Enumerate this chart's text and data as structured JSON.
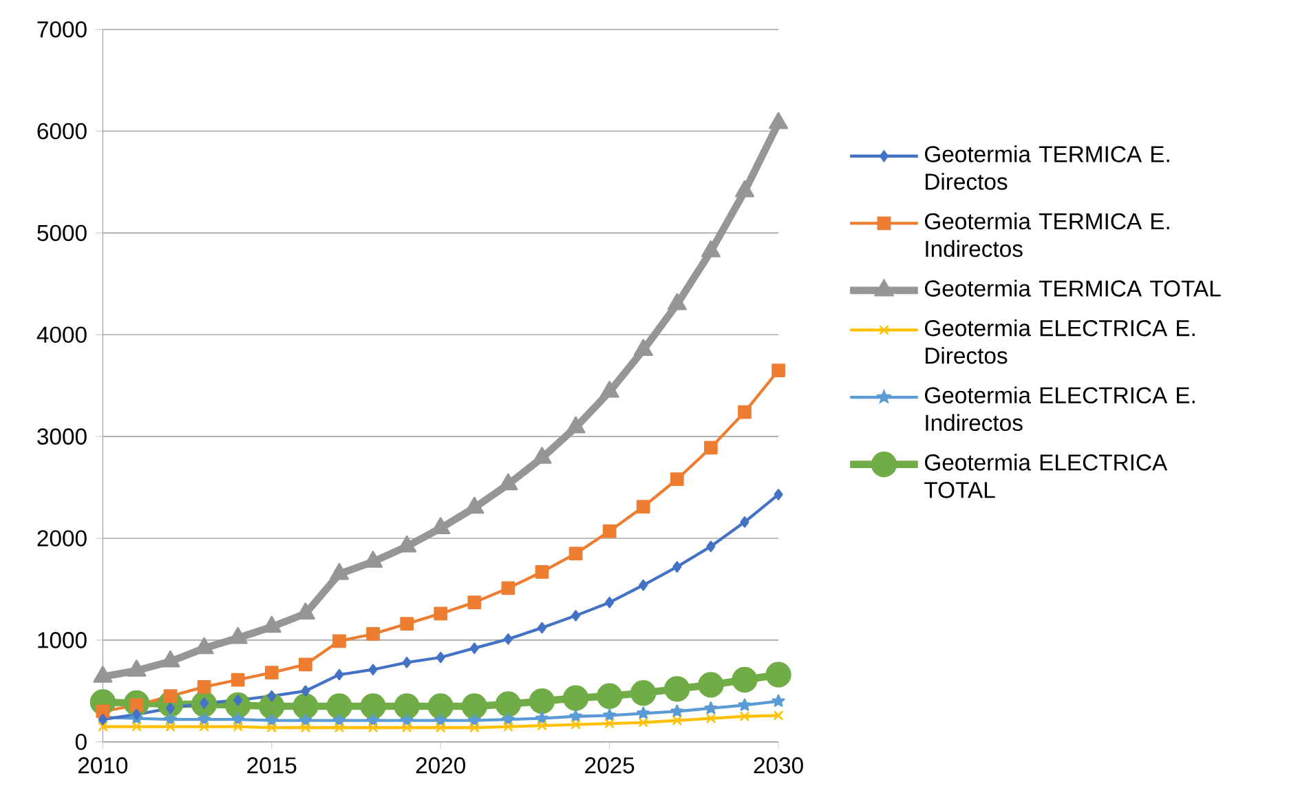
{
  "chart_data": {
    "type": "line",
    "x": [
      2010,
      2011,
      2012,
      2013,
      2014,
      2015,
      2016,
      2017,
      2018,
      2019,
      2020,
      2021,
      2022,
      2023,
      2024,
      2025,
      2026,
      2027,
      2028,
      2029,
      2030
    ],
    "series": [
      {
        "name": "Geotermia TERMICA E. Directos",
        "color": "#4472c4",
        "marker": "diamond",
        "values": [
          220,
          270,
          330,
          380,
          410,
          450,
          500,
          660,
          710,
          780,
          830,
          920,
          1010,
          1120,
          1240,
          1370,
          1540,
          1720,
          1920,
          2160,
          2430
        ]
      },
      {
        "name": "Geotermia TERMICA E. Indirectos",
        "color": "#ed7d31",
        "marker": "square",
        "values": [
          300,
          360,
          450,
          540,
          610,
          680,
          760,
          990,
          1060,
          1160,
          1260,
          1370,
          1510,
          1670,
          1850,
          2070,
          2310,
          2580,
          2890,
          3240,
          3650
        ]
      },
      {
        "name": "Geotermia TERMICA TOTAL",
        "color": "#969696",
        "marker": "triangle",
        "values": [
          640,
          700,
          790,
          920,
          1020,
          1130,
          1260,
          1650,
          1770,
          1920,
          2100,
          2300,
          2530,
          2790,
          3090,
          3440,
          3850,
          4300,
          4820,
          5410,
          6080
        ]
      },
      {
        "name": "Geotermia ELECTRICA E. Directos",
        "color": "#ffc000",
        "marker": "cross",
        "values": [
          150,
          150,
          150,
          150,
          150,
          140,
          140,
          140,
          140,
          140,
          140,
          140,
          150,
          160,
          170,
          180,
          190,
          210,
          230,
          250,
          260
        ]
      },
      {
        "name": "Geotermia ELECTRICA E. Indirectos",
        "color": "#5b9bd5",
        "marker": "star",
        "values": [
          240,
          230,
          220,
          220,
          220,
          210,
          210,
          210,
          210,
          210,
          210,
          210,
          220,
          230,
          250,
          260,
          280,
          300,
          330,
          360,
          400
        ]
      },
      {
        "name": "Geotermia ELECTRICA TOTAL",
        "color": "#70ad47",
        "marker": "circle",
        "values": [
          390,
          380,
          370,
          370,
          360,
          350,
          350,
          350,
          350,
          350,
          350,
          350,
          370,
          400,
          430,
          450,
          480,
          520,
          560,
          610,
          660
        ]
      }
    ],
    "xlim": [
      2010,
      2030
    ],
    "xticks": [
      2010,
      2015,
      2020,
      2025,
      2030
    ],
    "ylim": [
      0,
      7000
    ],
    "yticks": [
      0,
      1000,
      2000,
      3000,
      4000,
      5000,
      6000,
      7000
    ],
    "grid": "y",
    "legend": "right",
    "line_style": "solid"
  }
}
